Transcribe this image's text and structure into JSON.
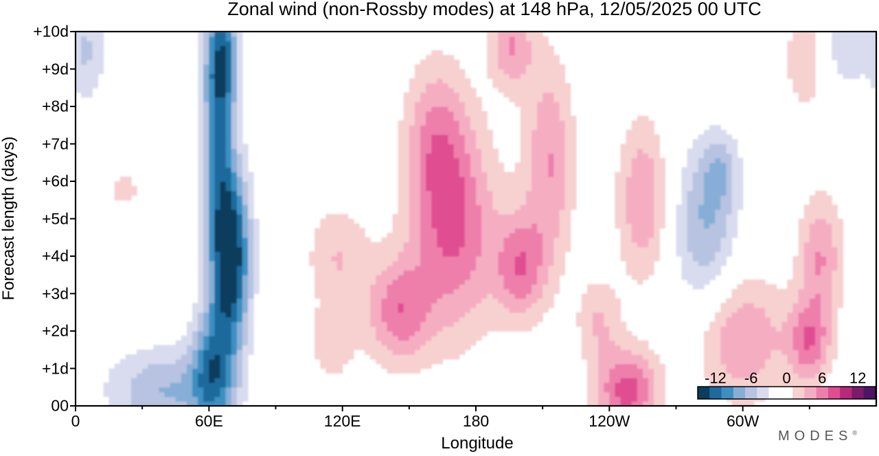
{
  "chart_data": {
    "type": "heatmap",
    "title": "Zonal wind (non-Rossby modes) at 148 hPa,  12/05/2025  00 UTC",
    "xlabel": "Longitude",
    "ylabel": "Forecast length (days)",
    "x_tick_labels": [
      "0",
      "60E",
      "120E",
      "180",
      "120W",
      "60W"
    ],
    "x_ticks_deg": [
      0,
      60,
      120,
      180,
      240,
      300
    ],
    "x_minor_ticks_deg": [
      30,
      90,
      150,
      210,
      270,
      330
    ],
    "xlim": [
      0,
      360
    ],
    "y_tick_labels": [
      "00",
      "+1d",
      "+2d",
      "+3d",
      "+4d",
      "+5d",
      "+6d",
      "+7d",
      "+8d",
      "+9d",
      "+10d"
    ],
    "y_ticks": [
      0,
      1,
      2,
      3,
      4,
      5,
      6,
      7,
      8,
      9,
      10
    ],
    "ylim": [
      0,
      10
    ],
    "colorbar": {
      "tick_labels": [
        "-12",
        "-6",
        "0",
        "6",
        "12"
      ],
      "tick_values": [
        -12,
        -6,
        0,
        6,
        12
      ],
      "colors": [
        "#0b3d5c",
        "#1c6b9c",
        "#3d8fc2",
        "#86aed6",
        "#b7c3e0",
        "#d8dcee",
        "#ffffff",
        "#ffffff",
        "#f7d0d0",
        "#f5adc2",
        "#ee7fab",
        "#e04d91",
        "#b8287c",
        "#7c1a6b",
        "#4d1565"
      ]
    },
    "contour_levels": [
      -12,
      -10,
      -8,
      -6,
      -4,
      -2,
      0,
      2,
      4,
      6,
      8,
      10,
      12
    ],
    "anomalies": [
      {
        "lon": 70,
        "day": 4.0,
        "value": -14,
        "sx": 6,
        "sy": 1.6
      },
      {
        "lon": 64,
        "day": 7.5,
        "value": -9,
        "sx": 5,
        "sy": 2.5
      },
      {
        "lon": 62,
        "day": 1.0,
        "value": -9,
        "sx": 7,
        "sy": 1.2
      },
      {
        "lon": 67,
        "day": 9.3,
        "value": -7,
        "sx": 5,
        "sy": 1.0
      },
      {
        "lon": 40,
        "day": 0.4,
        "value": -6,
        "sx": 18,
        "sy": 0.8
      },
      {
        "lon": 5,
        "day": 9.5,
        "value": -4,
        "sx": 6,
        "sy": 1.0
      },
      {
        "lon": 283,
        "day": 4.8,
        "value": -6,
        "sx": 10,
        "sy": 1.5
      },
      {
        "lon": 290,
        "day": 6.3,
        "value": -4,
        "sx": 6,
        "sy": 0.7
      },
      {
        "lon": 342,
        "day": 9.5,
        "value": -4,
        "sx": 10,
        "sy": 0.9
      },
      {
        "lon": 145,
        "day": 2.5,
        "value": 7,
        "sx": 10,
        "sy": 1.0
      },
      {
        "lon": 170,
        "day": 4.7,
        "value": 8,
        "sx": 14,
        "sy": 2.0
      },
      {
        "lon": 162,
        "day": 7.2,
        "value": 5,
        "sx": 10,
        "sy": 1.5
      },
      {
        "lon": 200,
        "day": 3.7,
        "value": 7,
        "sx": 8,
        "sy": 1.0
      },
      {
        "lon": 213,
        "day": 6.5,
        "value": 6,
        "sx": 8,
        "sy": 2.0
      },
      {
        "lon": 196,
        "day": 9.6,
        "value": 6,
        "sx": 7,
        "sy": 0.8
      },
      {
        "lon": 248,
        "day": 0.4,
        "value": 9,
        "sx": 10,
        "sy": 0.8
      },
      {
        "lon": 255,
        "day": 5.5,
        "value": 6,
        "sx": 8,
        "sy": 1.5
      },
      {
        "lon": 300,
        "day": 1.8,
        "value": 6,
        "sx": 14,
        "sy": 1.2
      },
      {
        "lon": 330,
        "day": 1.7,
        "value": 7,
        "sx": 7,
        "sy": 0.8
      },
      {
        "lon": 335,
        "day": 4.0,
        "value": 6,
        "sx": 7,
        "sy": 1.2
      },
      {
        "lon": 118,
        "day": 4.0,
        "value": 4,
        "sx": 10,
        "sy": 1.0
      },
      {
        "lon": 115,
        "day": 1.6,
        "value": 3,
        "sx": 8,
        "sy": 0.8
      },
      {
        "lon": 330,
        "day": 9.3,
        "value": 5,
        "sx": 8,
        "sy": 1.0
      },
      {
        "lon": 22,
        "day": 5.8,
        "value": 3,
        "sx": 5,
        "sy": 0.4
      },
      {
        "lon": 235,
        "day": 2.3,
        "value": 4,
        "sx": 7,
        "sy": 0.8
      }
    ]
  },
  "branding": "MODES",
  "branding_mark": "®"
}
